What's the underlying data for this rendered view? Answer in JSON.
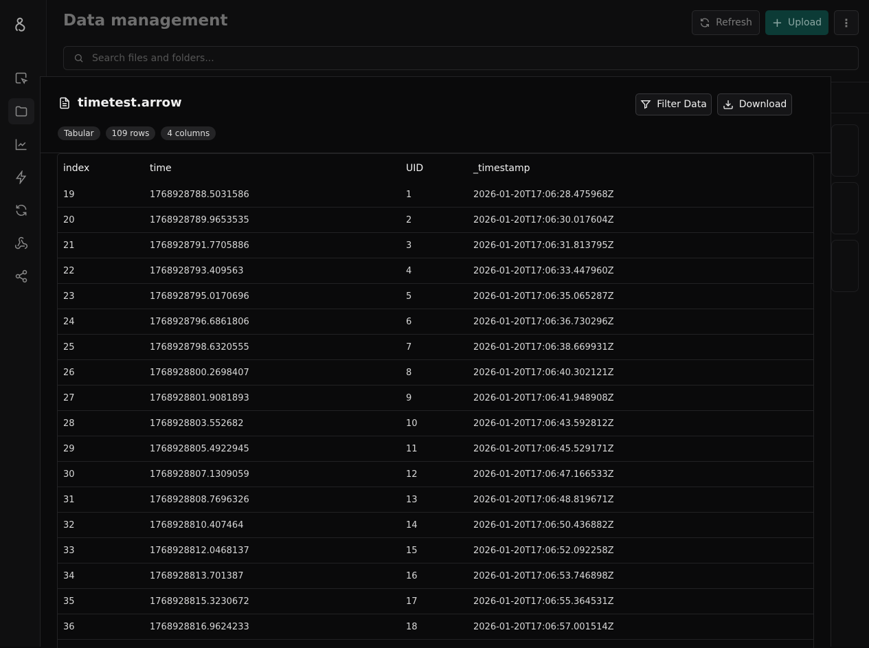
{
  "header": {
    "title": "Data management",
    "refresh_label": "Refresh",
    "upload_label": "Upload",
    "search_placeholder": "Search files and folders..."
  },
  "colors": {
    "upload_bg": "#0c3b36",
    "background": "#0a0a0b"
  },
  "sidebar": {
    "items": [
      "logo-icon",
      "select-icon",
      "folder-icon",
      "chart-icon",
      "zap-icon",
      "refresh-icon",
      "webhook-icon",
      "share-icon"
    ],
    "active": "folder-icon"
  },
  "panel": {
    "file_name": "timetest.arrow",
    "filter_label": "Filter Data",
    "download_label": "Download",
    "badges": [
      "Tabular",
      "109 rows",
      "4 columns"
    ],
    "columns": [
      "index",
      "time",
      "UID",
      "_timestamp"
    ],
    "rows": [
      [
        "19",
        "1768928788.5031586",
        "1",
        "2026-01-20T17:06:28.475968Z"
      ],
      [
        "20",
        "1768928789.9653535",
        "2",
        "2026-01-20T17:06:30.017604Z"
      ],
      [
        "21",
        "1768928791.7705886",
        "3",
        "2026-01-20T17:06:31.813795Z"
      ],
      [
        "22",
        "1768928793.409563",
        "4",
        "2026-01-20T17:06:33.447960Z"
      ],
      [
        "23",
        "1768928795.0170696",
        "5",
        "2026-01-20T17:06:35.065287Z"
      ],
      [
        "24",
        "1768928796.6861806",
        "6",
        "2026-01-20T17:06:36.730296Z"
      ],
      [
        "25",
        "1768928798.6320555",
        "7",
        "2026-01-20T17:06:38.669931Z"
      ],
      [
        "26",
        "1768928800.2698407",
        "8",
        "2026-01-20T17:06:40.302121Z"
      ],
      [
        "27",
        "1768928801.9081893",
        "9",
        "2026-01-20T17:06:41.948908Z"
      ],
      [
        "28",
        "1768928803.552682",
        "10",
        "2026-01-20T17:06:43.592812Z"
      ],
      [
        "29",
        "1768928805.4922945",
        "11",
        "2026-01-20T17:06:45.529171Z"
      ],
      [
        "30",
        "1768928807.1309059",
        "12",
        "2026-01-20T17:06:47.166533Z"
      ],
      [
        "31",
        "1768928808.7696326",
        "13",
        "2026-01-20T17:06:48.819671Z"
      ],
      [
        "32",
        "1768928810.407464",
        "14",
        "2026-01-20T17:06:50.436882Z"
      ],
      [
        "33",
        "1768928812.0468137",
        "15",
        "2026-01-20T17:06:52.092258Z"
      ],
      [
        "34",
        "1768928813.701387",
        "16",
        "2026-01-20T17:06:53.746898Z"
      ],
      [
        "35",
        "1768928815.3230672",
        "17",
        "2026-01-20T17:06:55.364531Z"
      ],
      [
        "36",
        "1768928816.9624233",
        "18",
        "2026-01-20T17:06:57.001514Z"
      ]
    ]
  }
}
